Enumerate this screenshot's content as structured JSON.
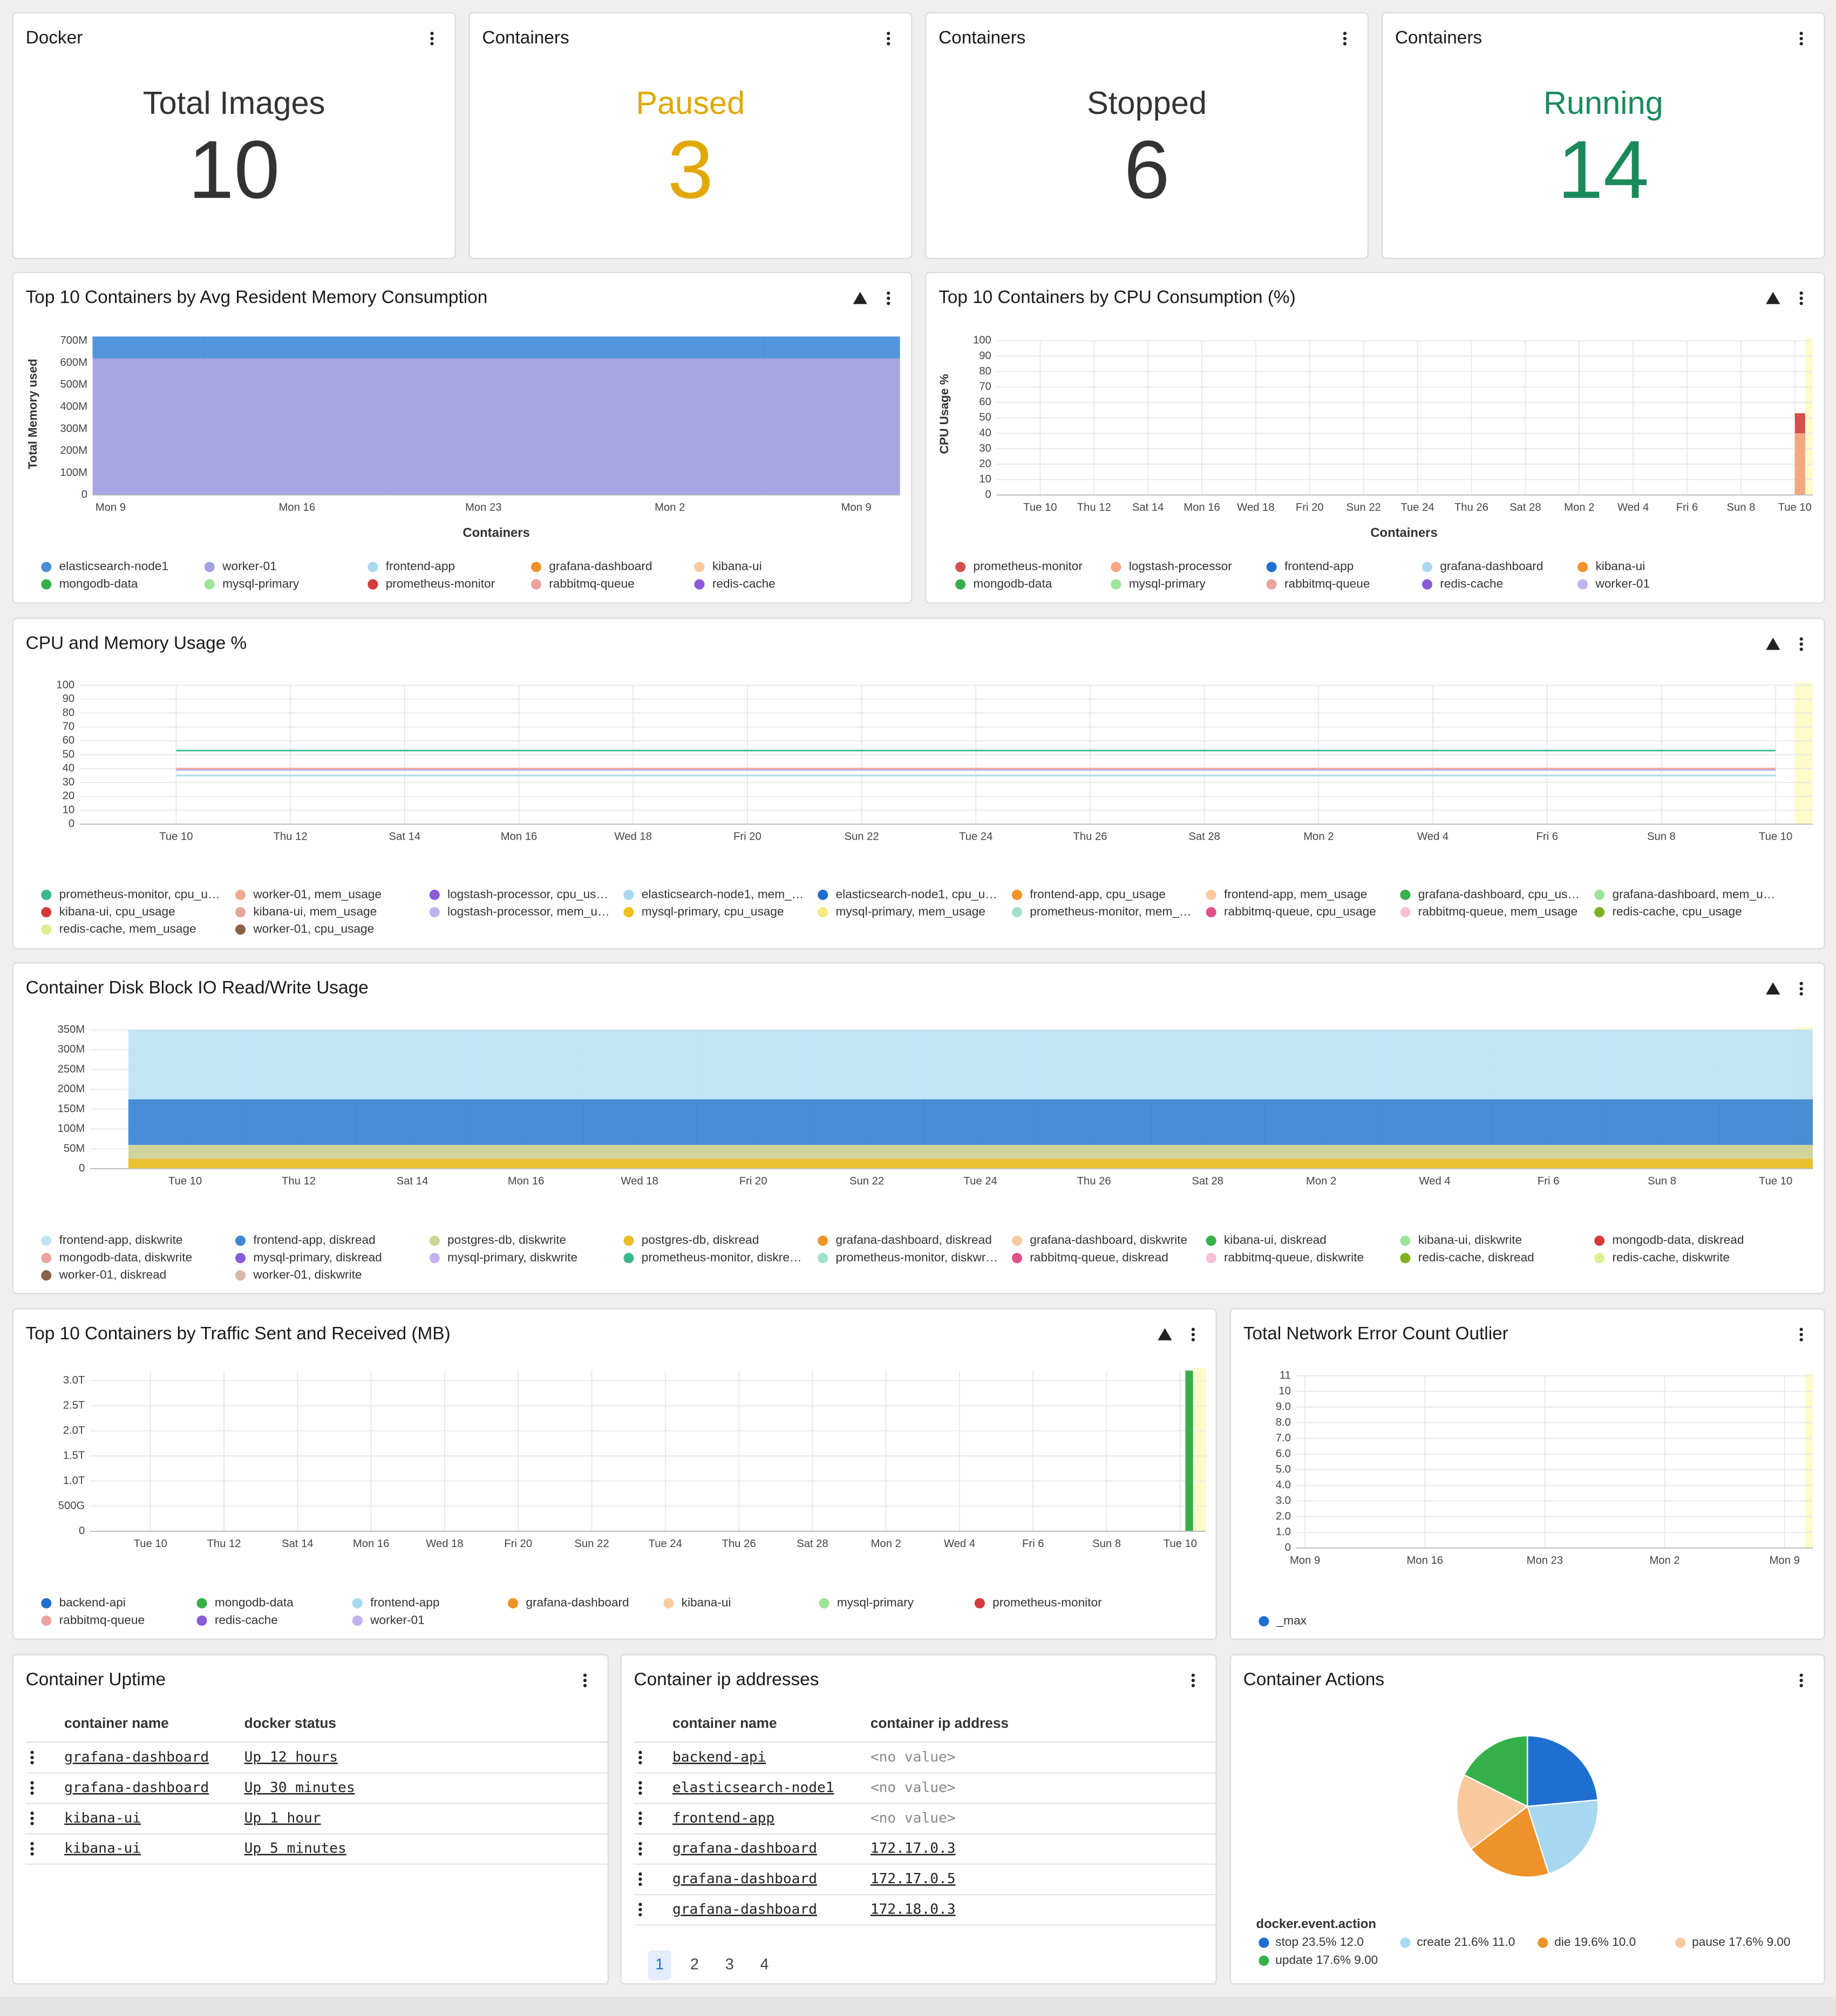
{
  "stat_panels": [
    {
      "header": "Docker",
      "label": "Total Images",
      "value": 10,
      "color": "#333333"
    },
    {
      "header": "Containers",
      "label": "Paused",
      "value": 3,
      "color": "#e0a800"
    },
    {
      "header": "Containers",
      "label": "Stopped",
      "value": 6,
      "color": "#333333"
    },
    {
      "header": "Containers",
      "label": "Running",
      "value": 14,
      "color": "#1a8a5a"
    }
  ],
  "chart_data": [
    {
      "type": "area",
      "stacked": true,
      "grid": false,
      "title": "Top 10 Containers by Avg Resident Memory Consumption",
      "y_label": "Total Memory used",
      "x_label": "Containers",
      "categories": [
        "Mon 9",
        "Mon 16",
        "Mon 23",
        "Mon 2",
        "Mon 9"
      ],
      "ylim": [
        0,
        730000000
      ],
      "yticks": [
        0,
        {
          "value": 100000000,
          "label": "100M"
        },
        {
          "value": 200000000,
          "label": "200M"
        },
        {
          "value": 300000000,
          "label": "300M"
        },
        {
          "value": 400000000,
          "label": "400M"
        },
        {
          "value": 500000000,
          "label": "500M"
        },
        {
          "value": 600000000,
          "label": "600M"
        },
        {
          "value": 700000000,
          "label": "700M"
        }
      ],
      "series": [
        {
          "name": "elasticsearch-node1",
          "color": "#4a8fd8",
          "values": [
            100000000,
            100000000,
            100000000,
            100000000,
            100000000
          ]
        },
        {
          "name": "worker-01",
          "color": "#a3a2e3",
          "values": [
            620000000,
            620000000,
            620000000,
            620000000,
            620000000
          ]
        },
        {
          "name": "frontend-app",
          "color": "#a8d8f0"
        },
        {
          "name": "grafana-dashboard",
          "color": "#f0922a"
        },
        {
          "name": "kibana-ui",
          "color": "#fac99e"
        },
        {
          "name": "mongodb-data",
          "color": "#36b04a"
        },
        {
          "name": "mysql-primary",
          "color": "#9ee39a"
        },
        {
          "name": "prometheus-monitor",
          "color": "#d43a3a"
        },
        {
          "name": "rabbitmq-queue",
          "color": "#eba3a0"
        },
        {
          "name": "redis-cache",
          "color": "#8a5ad8"
        }
      ]
    },
    {
      "type": "bar",
      "stacked": true,
      "grid": true,
      "title": "Top 10 Containers by CPU Consumption (%)",
      "y_label": "CPU Usage %",
      "x_label": "Containers",
      "categories": [
        "Tue 10",
        "Thu 12",
        "Sat 14",
        "Mon 16",
        "Wed 18",
        "Fri 20",
        "Sun 22",
        "Tue 24",
        "Thu 26",
        "Sat 28",
        "Mon 2",
        "Wed 4",
        "Fri 6",
        "Sun 8",
        "Tue 10"
      ],
      "ylim": [
        0,
        100
      ],
      "yticks": [
        0,
        10,
        20,
        30,
        40,
        50,
        60,
        70,
        80,
        90,
        100
      ],
      "series": [
        {
          "name": "prometheus-monitor",
          "color": "#d45050",
          "values": [
            null,
            null,
            null,
            null,
            null,
            null,
            null,
            null,
            null,
            null,
            null,
            null,
            null,
            null,
            13
          ]
        },
        {
          "name": "logstash-processor",
          "color": "#f4a582",
          "values": [
            null,
            null,
            null,
            null,
            null,
            null,
            null,
            null,
            null,
            null,
            null,
            null,
            null,
            null,
            40
          ]
        },
        {
          "name": "frontend-app",
          "color": "#1f6fd0"
        },
        {
          "name": "grafana-dashboard",
          "color": "#a8d8f0"
        },
        {
          "name": "kibana-ui",
          "color": "#f0922a"
        },
        {
          "name": "mongodb-data",
          "color": "#36b04a"
        },
        {
          "name": "mysql-primary",
          "color": "#9ee39a"
        },
        {
          "name": "rabbitmq-queue",
          "color": "#eba3a0"
        },
        {
          "name": "redis-cache",
          "color": "#8a5ad8"
        },
        {
          "name": "worker-01",
          "color": "#c3b0f0"
        }
      ]
    },
    {
      "type": "line",
      "stacked": false,
      "grid": true,
      "title": "CPU and Memory Usage %",
      "categories": [
        "Tue 10",
        "Thu 12",
        "Sat 14",
        "Mon 16",
        "Wed 18",
        "Fri 20",
        "Sun 22",
        "Tue 24",
        "Thu 26",
        "Sat 28",
        "Mon 2",
        "Wed 4",
        "Fri 6",
        "Sun 8",
        "Tue 10"
      ],
      "ylim": [
        0,
        100
      ],
      "yticks": [
        0,
        10,
        20,
        30,
        40,
        50,
        60,
        70,
        80,
        90,
        100
      ],
      "series": [
        {
          "name": "prometheus-monitor, cpu_u…",
          "color": "#3cb88a",
          "values": [
            53,
            53,
            53,
            53,
            53,
            53,
            53,
            53,
            53,
            53,
            53,
            53,
            53,
            53,
            53
          ]
        },
        {
          "name": "worker-01, mem_usage",
          "color": "#f0a890",
          "values": [
            40,
            40,
            40,
            40,
            40,
            40,
            40,
            40,
            40,
            40,
            40,
            40,
            40,
            40,
            40
          ]
        },
        {
          "name": "logstash-processor, cpu_us…",
          "color": "#8a5ad8"
        },
        {
          "name": "elasticsearch-node1, mem_…",
          "color": "#a8d8f0",
          "values": [
            35,
            35,
            35,
            35,
            35,
            35,
            35,
            35,
            35,
            35,
            35,
            35,
            35,
            35,
            35
          ]
        },
        {
          "name": "elasticsearch-node1, cpu_u…",
          "color": "#1f6fd0"
        },
        {
          "name": "frontend-app, cpu_usage",
          "color": "#f0922a"
        },
        {
          "name": "frontend-app, mem_usage",
          "color": "#fac99e"
        },
        {
          "name": "grafana-dashboard, cpu_us…",
          "color": "#36b04a"
        },
        {
          "name": "grafana-dashboard, mem_u…",
          "color": "#9ee39a"
        },
        {
          "name": "kibana-ui, cpu_usage",
          "color": "#d43a3a"
        },
        {
          "name": "kibana-ui, mem_usage",
          "color": "#eba3a0"
        },
        {
          "name": "logstash-processor, mem_u…",
          "color": "#c3b0f0",
          "values": [
            39,
            39,
            39,
            39,
            39,
            39,
            39,
            39,
            39,
            39,
            39,
            39,
            39,
            39,
            39
          ]
        },
        {
          "name": "mysql-primary, cpu_usage",
          "color": "#f0c020"
        },
        {
          "name": "mysql-primary, mem_usage",
          "color": "#f8e880"
        },
        {
          "name": "prometheus-monitor, mem_…",
          "color": "#9ee0c8"
        },
        {
          "name": "rabbitmq-queue, cpu_usage",
          "color": "#e0508a"
        },
        {
          "name": "rabbitmq-queue, mem_usage",
          "color": "#f8c0d8"
        },
        {
          "name": "redis-cache, cpu_usage",
          "color": "#80b020"
        },
        {
          "name": "redis-cache, mem_usage",
          "color": "#d8f090"
        },
        {
          "name": "worker-01, cpu_usage",
          "color": "#8a6048"
        }
      ]
    },
    {
      "type": "area",
      "stacked": true,
      "grid": true,
      "title": "Container Disk Block IO Read/Write Usage",
      "categories": [
        "Tue 10",
        "Thu 12",
        "Sat 14",
        "Mon 16",
        "Wed 18",
        "Fri 20",
        "Sun 22",
        "Tue 24",
        "Thu 26",
        "Sat 28",
        "Mon 2",
        "Wed 4",
        "Fri 6",
        "Sun 8",
        "Tue 10"
      ],
      "ylim": [
        0,
        350000000
      ],
      "yticks": [
        0,
        {
          "value": 50000000,
          "label": "50M"
        },
        {
          "value": 100000000,
          "label": "100M"
        },
        {
          "value": 150000000,
          "label": "150M"
        },
        {
          "value": 200000000,
          "label": "200M"
        },
        {
          "value": 250000000,
          "label": "250M"
        },
        {
          "value": 300000000,
          "label": "300M"
        },
        {
          "value": 350000000,
          "label": "350M"
        }
      ],
      "series": [
        {
          "name": "frontend-app, diskwrite",
          "color": "#bfe3f4",
          "values": [
            175000000,
            175000000,
            175000000,
            175000000,
            175000000,
            175000000,
            175000000,
            175000000,
            175000000,
            175000000,
            175000000,
            175000000,
            175000000,
            175000000,
            175000000
          ]
        },
        {
          "name": "frontend-app, diskread",
          "color": "#3d88d4",
          "values": [
            115000000,
            115000000,
            115000000,
            115000000,
            115000000,
            115000000,
            115000000,
            115000000,
            115000000,
            115000000,
            115000000,
            115000000,
            115000000,
            115000000,
            115000000
          ]
        },
        {
          "name": "postgres-db, diskwrite",
          "color": "#cfd398",
          "values": [
            35000000,
            35000000,
            35000000,
            35000000,
            35000000,
            35000000,
            35000000,
            35000000,
            35000000,
            35000000,
            35000000,
            35000000,
            35000000,
            35000000,
            35000000
          ]
        },
        {
          "name": "postgres-db, diskread",
          "color": "#e8be28",
          "values": [
            25000000,
            25000000,
            25000000,
            25000000,
            25000000,
            25000000,
            25000000,
            25000000,
            25000000,
            25000000,
            25000000,
            25000000,
            25000000,
            25000000,
            25000000
          ]
        },
        {
          "name": "grafana-dashboard, diskread",
          "color": "#f0922a"
        },
        {
          "name": "grafana-dashboard, diskwrite",
          "color": "#fac99e"
        },
        {
          "name": "kibana-ui, diskread",
          "color": "#36b04a"
        },
        {
          "name": "kibana-ui, diskwrite",
          "color": "#9ee39a"
        },
        {
          "name": "mongodb-data, diskread",
          "color": "#d43a3a"
        },
        {
          "name": "mongodb-data, diskwrite",
          "color": "#eba3a0"
        },
        {
          "name": "mysql-primary, diskread",
          "color": "#8a5ad8"
        },
        {
          "name": "mysql-primary, diskwrite",
          "color": "#c3b0f0"
        },
        {
          "name": "prometheus-monitor, diskre…",
          "color": "#3cb88a"
        },
        {
          "name": "prometheus-monitor, diskwr…",
          "color": "#9ee0c8"
        },
        {
          "name": "rabbitmq-queue, diskread",
          "color": "#e0508a"
        },
        {
          "name": "rabbitmq-queue, diskwrite",
          "color": "#f8c0d8"
        },
        {
          "name": "redis-cache, diskread",
          "color": "#80b020"
        },
        {
          "name": "redis-cache, diskwrite",
          "color": "#d8f090"
        },
        {
          "name": "worker-01, diskread",
          "color": "#8a6048"
        },
        {
          "name": "worker-01, diskwrite",
          "color": "#d8b8a8"
        }
      ]
    },
    {
      "type": "bar",
      "stacked": true,
      "grid": true,
      "title": "Top 10 Containers by Traffic Sent and Received (MB)",
      "categories": [
        "Tue 10",
        "Thu 12",
        "Sat 14",
        "Mon 16",
        "Wed 18",
        "Fri 20",
        "Sun 22",
        "Tue 24",
        "Thu 26",
        "Sat 28",
        "Mon 2",
        "Wed 4",
        "Fri 6",
        "Sun 8",
        "Tue 10"
      ],
      "ylim": [
        0,
        3200000000000
      ],
      "yticks": [
        0,
        {
          "value": 500000000000,
          "label": "500G"
        },
        {
          "value": 1000000000000,
          "label": "1.0T"
        },
        {
          "value": 1500000000000,
          "label": "1.5T"
        },
        {
          "value": 2000000000000,
          "label": "2.0T"
        },
        {
          "value": 2500000000000,
          "label": "2.5T"
        },
        {
          "value": 3000000000000,
          "label": "3.0T"
        }
      ],
      "series": [
        {
          "name": "backend-api",
          "color": "#1f6fd0"
        },
        {
          "name": "mongodb-data",
          "color": "#36b04a",
          "values": [
            null,
            null,
            null,
            null,
            null,
            null,
            null,
            null,
            null,
            null,
            null,
            null,
            null,
            null,
            3200000000000
          ]
        },
        {
          "name": "frontend-app",
          "color": "#a8d8f0"
        },
        {
          "name": "grafana-dashboard",
          "color": "#f0922a"
        },
        {
          "name": "kibana-ui",
          "color": "#fac99e"
        },
        {
          "name": "mysql-primary",
          "color": "#9ee39a"
        },
        {
          "name": "prometheus-monitor",
          "color": "#d43a3a"
        },
        {
          "name": "rabbitmq-queue",
          "color": "#eba3a0"
        },
        {
          "name": "redis-cache",
          "color": "#8a5ad8"
        },
        {
          "name": "worker-01",
          "color": "#c3b0f0"
        }
      ]
    },
    {
      "type": "line",
      "stacked": false,
      "grid": true,
      "title": "Total Network Error Count Outlier",
      "categories": [
        "Mon 9",
        "Mon 16",
        "Mon 23",
        "Mon 2",
        "Mon 9"
      ],
      "ylim": [
        0,
        11
      ],
      "yticks": [
        0,
        {
          "value": 1,
          "label": "1.0"
        },
        {
          "value": 2,
          "label": "2.0"
        },
        {
          "value": 3,
          "label": "3.0"
        },
        {
          "value": 4,
          "label": "4.0"
        },
        {
          "value": 5,
          "label": "5.0"
        },
        {
          "value": 6,
          "label": "6.0"
        },
        {
          "value": 7,
          "label": "7.0"
        },
        {
          "value": 8,
          "label": "8.0"
        },
        {
          "value": 9,
          "label": "9.0"
        },
        10,
        11
      ],
      "series": [
        {
          "name": "_max",
          "color": "#1f6fd0"
        }
      ]
    },
    {
      "type": "pie",
      "title": "Container Actions",
      "legend_title": "docker.event.action",
      "categories": [
        "stop",
        "create",
        "die",
        "pause",
        "update"
      ],
      "values": [
        12,
        11,
        10,
        9,
        9
      ],
      "value_labels": [
        "12.0",
        "11.0",
        "10.0",
        "9.00",
        "9.00"
      ],
      "percents": [
        23.5,
        21.6,
        19.6,
        17.6,
        17.6
      ],
      "percent_labels": [
        "23.5%",
        "21.6%",
        "19.6%",
        "17.6%",
        "17.6%"
      ],
      "colors": [
        "#1f6fd0",
        "#a8d8f0",
        "#f0922a",
        "#fac99e",
        "#36b04a"
      ]
    }
  ],
  "uptime_table": {
    "title": "Container Uptime",
    "columns": [
      "container name",
      "docker status"
    ],
    "rows": [
      [
        "grafana-dashboard",
        "Up 12 hours"
      ],
      [
        "grafana-dashboard",
        "Up 30 minutes"
      ],
      [
        "kibana-ui",
        "Up 1 hour"
      ],
      [
        "kibana-ui",
        "Up 5 minutes"
      ]
    ]
  },
  "ip_table": {
    "title": "Container ip addresses",
    "columns": [
      "container name",
      "container ip address"
    ],
    "rows": [
      [
        "backend-api",
        "<no value>"
      ],
      [
        "elasticsearch-node1",
        "<no value>"
      ],
      [
        "frontend-app",
        "<no value>"
      ],
      [
        "grafana-dashboard",
        "172.17.0.3"
      ],
      [
        "grafana-dashboard",
        "172.17.0.5"
      ],
      [
        "grafana-dashboard",
        "172.18.0.3"
      ]
    ],
    "pages": [
      "1",
      "2",
      "3",
      "4"
    ]
  }
}
